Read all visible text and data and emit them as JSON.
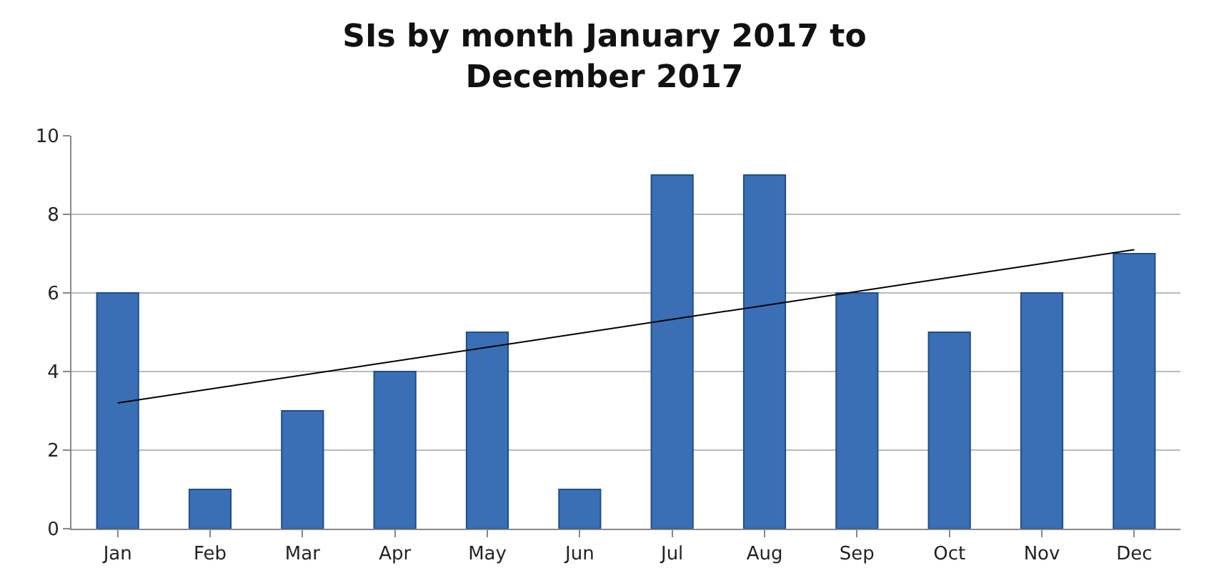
{
  "chart_data": {
    "type": "bar",
    "title": "SIs by month January 2017 to December 2017",
    "categories": [
      "Jan",
      "Feb",
      "Mar",
      "Apr",
      "May",
      "Jun",
      "Jul",
      "Aug",
      "Sep",
      "Oct",
      "Nov",
      "Dec"
    ],
    "series": [
      {
        "color": "#3a6fb5",
        "values": [
          6,
          1,
          3,
          4,
          5,
          1,
          9,
          9,
          6,
          5,
          6,
          7
        ]
      },
      {
        "type": "line",
        "color": "#000000",
        "x": [
          "Jan",
          "Dec"
        ],
        "values": [
          3.2,
          7.1
        ]
      }
    ],
    "ylim": [
      0,
      10
    ],
    "yticks": [
      0,
      2,
      4,
      6,
      8,
      10
    ],
    "grid": "y"
  }
}
